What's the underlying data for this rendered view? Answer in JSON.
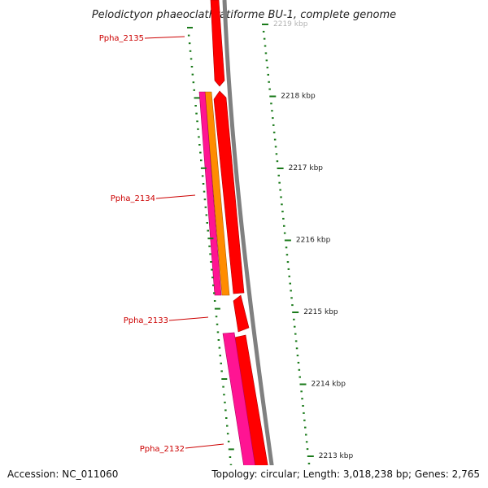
{
  "title": "Pelodictyon phaeoclathratiforme BU-1, complete genome",
  "footer": {
    "accession": "Accession: NC_011060",
    "summary": "Topology: circular; Length: 3,018,238 bp; Genes: 2,765"
  },
  "ruler": {
    "labels": [
      "2219 kbp",
      "2218 kbp",
      "2217 kbp",
      "2216 kbp",
      "2215 kbp",
      "2214 kbp",
      "2213 kbp"
    ]
  },
  "genes": [
    {
      "label": "Ppha_2135"
    },
    {
      "label": "Ppha_2134"
    },
    {
      "label": "Ppha_2133"
    },
    {
      "label": "Ppha_2132"
    }
  ],
  "colors": {
    "backbone": "#808080",
    "feature_red": "#ff0000",
    "feature_orange": "#ff8c00",
    "feature_pink": "#ff1493",
    "gene_label": "#cc0000",
    "ticks": "#1a7a1a"
  }
}
